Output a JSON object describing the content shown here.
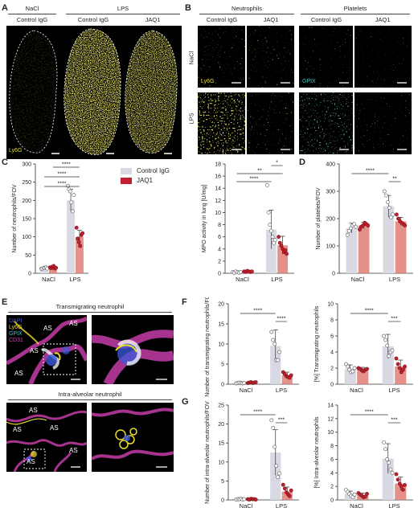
{
  "panels": {
    "A": "A",
    "B": "B",
    "C": "C",
    "D": "D",
    "E": "E",
    "F": "F",
    "G": "G"
  },
  "panelA": {
    "nacl": "NaCl",
    "lps": "LPS",
    "control": "Control IgG",
    "jaq1": "JAQ1",
    "stain": "Ly6G"
  },
  "panelB": {
    "neutrophils": "Neutrophils",
    "platelets": "Platelets",
    "control": "Control IgG",
    "jaq1": "JAQ1",
    "nacl": "NaCl",
    "lps": "LPS",
    "ly6g": "Ly6G",
    "gpix": "GPIX"
  },
  "panelE": {
    "transmigrating_title": "Transmigrating neutrophil",
    "intraalveolar_title": "Intra-alveolar neutrophil",
    "stain_dapi": "DAPI",
    "stain_ly6g": "Ly6G",
    "stain_gpix": "GPIX",
    "stain_cd31": "CD31",
    "as": "AS"
  },
  "colors": {
    "control": "#d9d9e3",
    "jaq1": "#c0202f",
    "jaq1_bar": "#e07c74",
    "ly6g": "#e8df2a",
    "gpix": "#3fc8c0",
    "dapi": "#3b5bdc",
    "cd31": "#d040b0"
  },
  "legend": {
    "control": "Control IgG",
    "jaq1": "JAQ1"
  },
  "chart_data": [
    {
      "id": "C1",
      "type": "bar",
      "ylabel": "Number of neutrophils/FOV",
      "ylim": [
        0,
        300
      ],
      "yticks": [
        "0",
        "50",
        "100",
        "150",
        "200",
        "250",
        "300"
      ],
      "categories": [
        "NaCl",
        "LPS"
      ],
      "series": [
        {
          "name": "Control IgG",
          "values": [
            14,
            200
          ],
          "err": [
            3,
            30
          ]
        },
        {
          "name": "JAQ1",
          "values": [
            15,
            100
          ],
          "err": [
            3,
            18
          ]
        }
      ],
      "points": [
        [
          12,
          13,
          15,
          14,
          16,
          13
        ],
        [
          16,
          14,
          18,
          20,
          13,
          15
        ],
        [
          240,
          230,
          225,
          195,
          170,
          215
        ],
        [
          125,
          95,
          85,
          75,
          105,
          110
        ]
      ],
      "sig": [
        "****",
        "****",
        "****"
      ]
    },
    {
      "id": "C2",
      "type": "bar",
      "ylabel": "MPO activity in lung [U/mg]",
      "ylim": [
        0,
        18
      ],
      "yticks": [
        "0",
        "2",
        "4",
        "6",
        "8",
        "10",
        "12",
        "14",
        "16",
        "18"
      ],
      "categories": [
        "NaCl",
        "LPS"
      ],
      "series": [
        {
          "name": "Control IgG",
          "values": [
            0.2,
            7.2
          ],
          "err": [
            0.1,
            3.2
          ]
        },
        {
          "name": "JAQ1",
          "values": [
            0.3,
            4.6
          ],
          "err": [
            0.2,
            1.5
          ]
        }
      ],
      "points": [
        [
          0.2,
          0.1,
          0.3,
          0.2,
          0.1,
          0.2
        ],
        [
          0.3,
          0.2,
          0.4,
          0.3,
          0.2,
          0.3
        ],
        [
          14.5,
          10,
          8,
          7,
          6,
          5,
          5.5
        ],
        [
          6,
          5,
          4.5,
          4,
          3.5,
          3.8,
          3.2
        ]
      ],
      "sig": [
        "****",
        "**",
        "*"
      ]
    },
    {
      "id": "D",
      "type": "bar",
      "ylabel": "Number of platelets/FOV",
      "ylim": [
        0,
        400
      ],
      "yticks": [
        "0",
        "100",
        "200",
        "300",
        "400"
      ],
      "categories": [
        "NaCl",
        "LPS"
      ],
      "series": [
        {
          "name": "Control IgG",
          "values": [
            165,
            245
          ],
          "err": [
            18,
            40
          ]
        },
        {
          "name": "JAQ1",
          "values": [
            175,
            190
          ],
          "err": [
            12,
            15
          ]
        }
      ],
      "points": [
        [
          140,
          155,
          165,
          175,
          180,
          170
        ],
        [
          160,
          170,
          175,
          185,
          180,
          175
        ],
        [
          300,
          285,
          260,
          240,
          205,
          215
        ],
        [
          215,
          200,
          190,
          185,
          180,
          175
        ]
      ],
      "sig": [
        "****",
        "**"
      ]
    },
    {
      "id": "F1",
      "type": "bar",
      "ylabel": "Number of transmigrating neutrophils/FOV",
      "ylim": [
        0,
        20
      ],
      "yticks": [
        "0",
        "5",
        "10",
        "15",
        "20"
      ],
      "categories": [
        "NaCl",
        "LPS"
      ],
      "series": [
        {
          "name": "Control IgG",
          "values": [
            0.3,
            9.5
          ],
          "err": [
            0.2,
            4
          ]
        },
        {
          "name": "JAQ1",
          "values": [
            0.4,
            2.2
          ],
          "err": [
            0.2,
            0.8
          ]
        }
      ],
      "points": [
        [
          0.2,
          0.3,
          0.4,
          0.3,
          0.2,
          0.3
        ],
        [
          0.3,
          0.4,
          0.5,
          0.3,
          0.4,
          0.5
        ],
        [
          13,
          11,
          10,
          6,
          6,
          8
        ],
        [
          3,
          2.5,
          2,
          1.8,
          1.6,
          2.2
        ]
      ],
      "sig": [
        "****",
        "****"
      ]
    },
    {
      "id": "F2",
      "type": "bar",
      "ylabel": "[%] Transmigrating neutrophils",
      "ylim": [
        0,
        10
      ],
      "yticks": [
        "0",
        "2",
        "4",
        "6",
        "8",
        "10"
      ],
      "categories": [
        "NaCl",
        "LPS"
      ],
      "series": [
        {
          "name": "Control IgG",
          "values": [
            1.9,
            4.7
          ],
          "err": [
            0.5,
            1.5
          ]
        },
        {
          "name": "JAQ1",
          "values": [
            1.8,
            2.2
          ],
          "err": [
            0.3,
            0.8
          ]
        }
      ],
      "points": [
        [
          2.5,
          2.2,
          1.8,
          1.5,
          1.6,
          2.0
        ],
        [
          2.0,
          1.9,
          1.7,
          1.6,
          1.8,
          1.9
        ],
        [
          6,
          5.5,
          4.8,
          3.5,
          4.0,
          4.2
        ],
        [
          3.2,
          2.5,
          2.0,
          1.5,
          1.8,
          2.2
        ]
      ],
      "sig": [
        "****",
        "***"
      ]
    },
    {
      "id": "G1",
      "type": "bar",
      "ylabel": "Number of intra-alveolar neutrophils/FOV",
      "ylim": [
        0,
        25
      ],
      "yticks": [
        "0",
        "5",
        "10",
        "15",
        "20",
        "25"
      ],
      "categories": [
        "NaCl",
        "LPS"
      ],
      "series": [
        {
          "name": "Control IgG",
          "values": [
            0.2,
            12.5
          ],
          "err": [
            0.1,
            6
          ]
        },
        {
          "name": "JAQ1",
          "values": [
            0.2,
            2.2
          ],
          "err": [
            0.1,
            1.2
          ]
        }
      ],
      "points": [
        [
          0.1,
          0.2,
          0.2,
          0.3,
          0.1,
          0.2
        ],
        [
          0.2,
          0.1,
          0.3,
          0.2,
          0.2,
          0.1
        ],
        [
          21,
          19,
          14,
          9,
          6,
          7
        ],
        [
          4,
          3,
          2,
          1.5,
          1,
          2.5
        ]
      ],
      "sig": [
        "****",
        "***"
      ]
    },
    {
      "id": "G2",
      "type": "bar",
      "ylabel": "[%] Intra-alveolar neutrophils",
      "ylim": [
        0,
        14
      ],
      "yticks": [
        "0",
        "2",
        "4",
        "6",
        "8",
        "10",
        "12",
        "14"
      ],
      "categories": [
        "NaCl",
        "LPS"
      ],
      "series": [
        {
          "name": "Control IgG",
          "values": [
            0.9,
            6.1
          ],
          "err": [
            0.4,
            2.2
          ]
        },
        {
          "name": "JAQ1",
          "values": [
            0.7,
            2.4
          ],
          "err": [
            0.3,
            1.0
          ]
        }
      ],
      "points": [
        [
          1.5,
          1.2,
          0.9,
          0.6,
          0.4,
          0.8
        ],
        [
          1.0,
          0.8,
          0.6,
          0.4,
          0.5,
          0.9
        ],
        [
          8.5,
          7.5,
          6.0,
          5.5,
          4.5,
          4.0
        ],
        [
          3.8,
          3.0,
          2.4,
          2.0,
          1.5,
          2.2
        ]
      ],
      "sig": [
        "****",
        "***"
      ]
    }
  ]
}
